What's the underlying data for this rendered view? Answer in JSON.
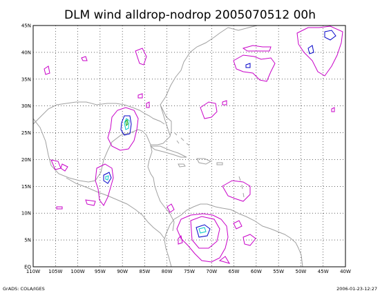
{
  "title": "DLM wind alldrop-nodrop 2005070512 00h",
  "footer_left": "GrADS: COLA/IGES",
  "footer_right": "2006-01-23-12:27",
  "map": {
    "lon_range": [
      -110,
      -40
    ],
    "lat_range": [
      0,
      45
    ],
    "lon_ticks": [
      "110W",
      "105W",
      "100W",
      "95W",
      "90W",
      "85W",
      "80W",
      "75W",
      "70W",
      "65W",
      "60W",
      "55W",
      "50W",
      "45W",
      "40W"
    ],
    "lat_ticks": [
      "EQ",
      "5N",
      "10N",
      "15N",
      "20N",
      "25N",
      "30N",
      "35N",
      "40N",
      "45N"
    ],
    "colors": {
      "coastline": "#a0a0a0",
      "contour_low": "#c800c8",
      "contour_mid": "#0000c8",
      "contour_high": "#00c8c8",
      "contour_peak": "#00a000"
    }
  }
}
